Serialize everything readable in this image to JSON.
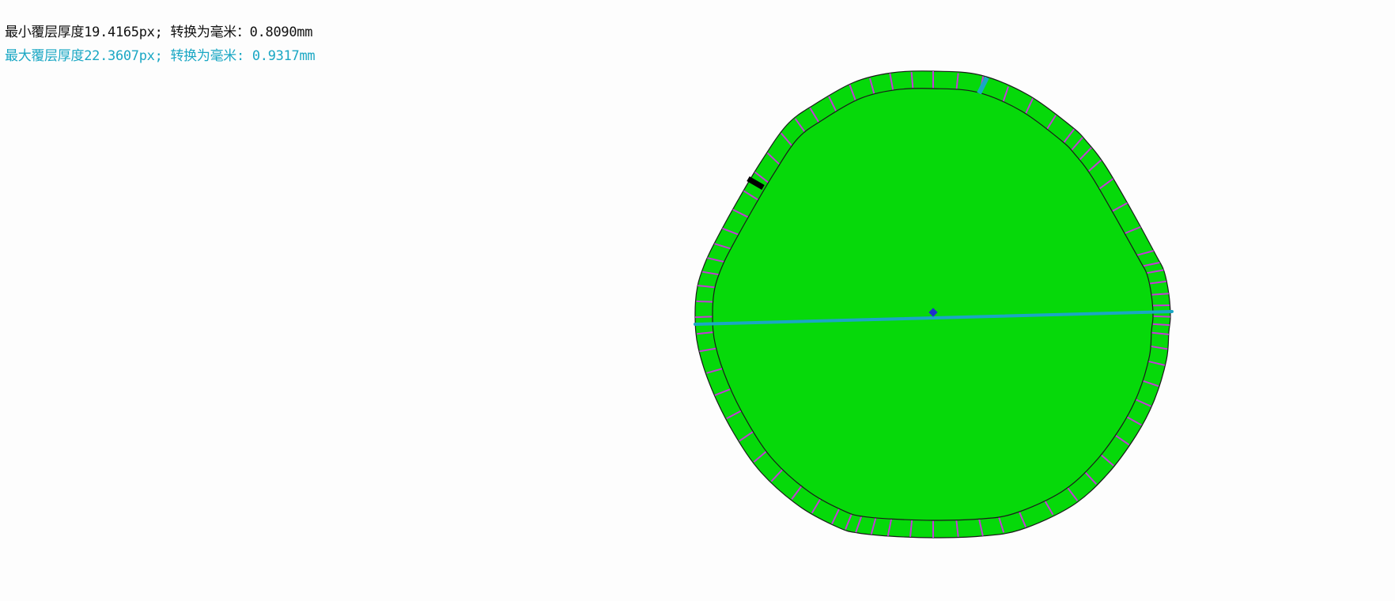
{
  "labels": {
    "min_thickness": "最小覆层厚度19.4165px; 转换为毫米：0.8090mm",
    "max_thickness": "最大覆层厚度22.3607px; 转换为毫米: 0.9317mm"
  },
  "colors": {
    "fill": "#06d90a",
    "outline": "#1a1a1a",
    "ticks": "#c43bd8",
    "min_marker": "#000000",
    "max_marker": "#1aa7c4",
    "diameter": "#1aa7c4",
    "center": "#1d2fcf",
    "min_text": "#111111",
    "max_text": "#1aa7c4"
  },
  "measurements": {
    "min_thickness_px": 19.4165,
    "min_thickness_mm": 0.809,
    "max_thickness_px": 22.3607,
    "max_thickness_mm": 0.9317
  }
}
